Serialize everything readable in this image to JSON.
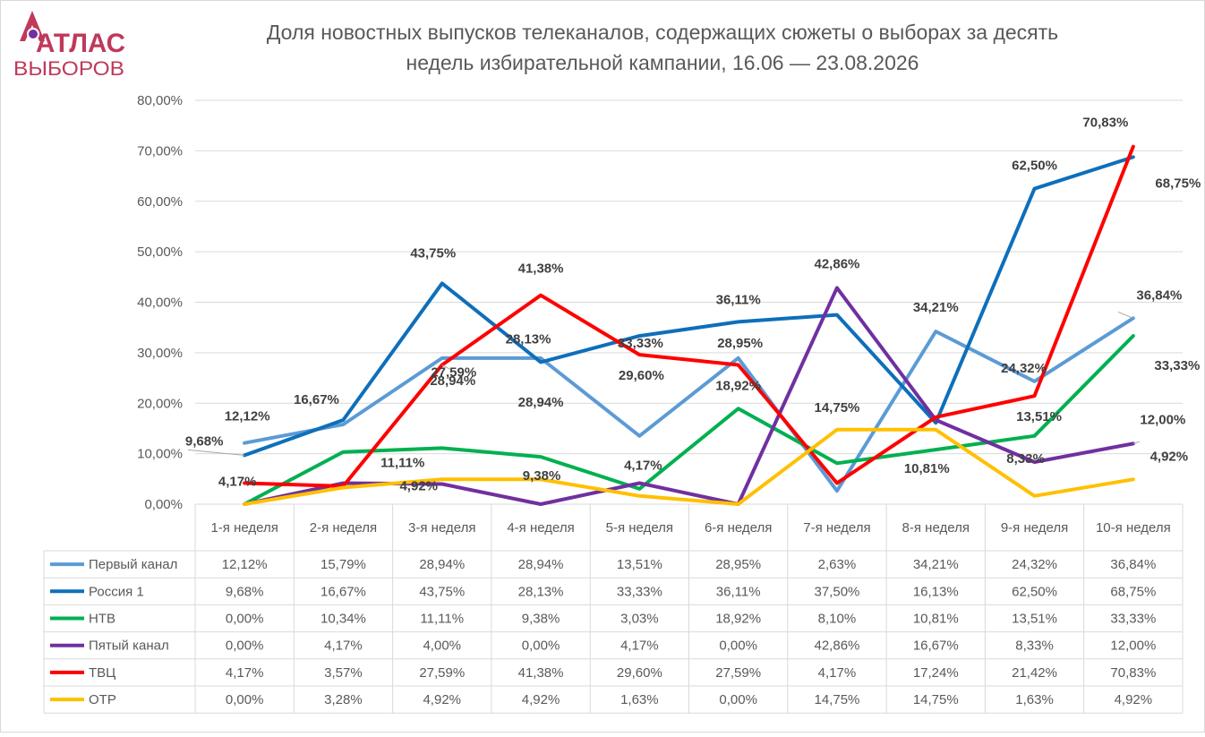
{
  "logo": {
    "line1": "АТЛАС",
    "line2": "ВЫБОРОВ",
    "color": "#c0395a"
  },
  "chart_data": {
    "type": "line",
    "title": "Доля новостных выпусков телеканалов, содержащих сюжеты о выборах за десять недель избирательной кампании, 16.06 — 23.08.2026",
    "title_lines": [
      "Доля новостных выпусков телеканалов, содержащих сюжеты о выборах за десять",
      "недель избирательной кампании, 16.06 — 23.08.2026"
    ],
    "categories": [
      "1-я неделя",
      "2-я неделя",
      "3-я неделя",
      "4-я неделя",
      "5-я неделя",
      "6-я неделя",
      "7-я неделя",
      "8-я неделя",
      "9-я неделя",
      "10-я неделя"
    ],
    "ylim": [
      0,
      80
    ],
    "yticks": [
      "0,00%",
      "10,00%",
      "20,00%",
      "30,00%",
      "40,00%",
      "50,00%",
      "60,00%",
      "70,00%",
      "80,00%"
    ],
    "grid": true,
    "legend": "data-table",
    "series": [
      {
        "name": "Первый канал",
        "color": "#5b9bd5",
        "values": [
          12.12,
          15.79,
          28.94,
          28.94,
          13.51,
          28.95,
          2.63,
          34.21,
          24.32,
          36.84
        ],
        "labels": [
          "12,12%",
          "15,79%",
          "28,94%",
          "28,94%",
          "13,51%",
          "28,95%",
          "2,63%",
          "34,21%",
          "24,32%",
          "36,84%"
        ]
      },
      {
        "name": "Россия 1",
        "color": "#0e6fba",
        "values": [
          9.68,
          16.67,
          43.75,
          28.13,
          33.33,
          36.11,
          37.5,
          16.13,
          62.5,
          68.75
        ],
        "labels": [
          "9,68%",
          "16,67%",
          "43,75%",
          "28,13%",
          "33,33%",
          "36,11%",
          "37,50%",
          "16,13%",
          "62,50%",
          "68,75%"
        ]
      },
      {
        "name": "НТВ",
        "color": "#00b050",
        "values": [
          0.0,
          10.34,
          11.11,
          9.38,
          3.03,
          18.92,
          8.1,
          10.81,
          13.51,
          33.33
        ],
        "labels": [
          "0,00%",
          "10,34%",
          "11,11%",
          "9,38%",
          "3,03%",
          "18,92%",
          "8,10%",
          "10,81%",
          "13,51%",
          "33,33%"
        ]
      },
      {
        "name": "Пятый канал",
        "color": "#7030a0",
        "values": [
          0.0,
          4.17,
          4.0,
          0.0,
          4.17,
          0.0,
          42.86,
          16.67,
          8.33,
          12.0
        ],
        "labels": [
          "0,00%",
          "4,17%",
          "4,00%",
          "0,00%",
          "4,17%",
          "0,00%",
          "42,86%",
          "16,67%",
          "8,33%",
          "12,00%"
        ]
      },
      {
        "name": "ТВЦ",
        "color": "#ff0000",
        "values": [
          4.17,
          3.57,
          27.59,
          41.38,
          29.6,
          27.59,
          4.17,
          17.24,
          21.42,
          70.83
        ],
        "labels": [
          "4,17%",
          "3,57%",
          "27,59%",
          "41,38%",
          "29,60%",
          "27,59%",
          "4,17%",
          "17,24%",
          "21,42%",
          "70,83%"
        ]
      },
      {
        "name": "ОТР",
        "color": "#ffc000",
        "values": [
          0.0,
          3.28,
          4.92,
          4.92,
          1.63,
          0.0,
          14.75,
          14.75,
          1.63,
          4.92
        ],
        "labels": [
          "0,00%",
          "3,28%",
          "4,92%",
          "4,92%",
          "1,63%",
          "0,00%",
          "14,75%",
          "14,75%",
          "1,63%",
          "4,92%"
        ]
      }
    ],
    "annotations": [
      {
        "text": "12,12%",
        "series": 0,
        "point": 0
      },
      {
        "text": "9,68%",
        "series": 1,
        "point": 0
      },
      {
        "text": "4,17%",
        "series": 4,
        "point": 0
      },
      {
        "text": "16,67%",
        "series": 1,
        "point": 1
      },
      {
        "text": "43,75%",
        "series": 1,
        "point": 2
      },
      {
        "text": "28,94%",
        "series": 0,
        "point": 2
      },
      {
        "text": "27,59%",
        "series": 4,
        "point": 2
      },
      {
        "text": "11,11%",
        "series": 2,
        "point": 2
      },
      {
        "text": "4,92%",
        "series": 5,
        "point": 2
      },
      {
        "text": "41,38%",
        "series": 4,
        "point": 3
      },
      {
        "text": "28,94%",
        "series": 0,
        "point": 3
      },
      {
        "text": "28,13%",
        "series": 1,
        "point": 3
      },
      {
        "text": "9,38%",
        "series": 2,
        "point": 3
      },
      {
        "text": "33,33%",
        "series": 1,
        "point": 4
      },
      {
        "text": "29,60%",
        "series": 4,
        "point": 4
      },
      {
        "text": "4,17%",
        "series": 3,
        "point": 4
      },
      {
        "text": "36,11%",
        "series": 1,
        "point": 5
      },
      {
        "text": "28,95%",
        "series": 0,
        "point": 5
      },
      {
        "text": "18,92%",
        "series": 2,
        "point": 5
      },
      {
        "text": "42,86%",
        "series": 3,
        "point": 6
      },
      {
        "text": "14,75%",
        "series": 5,
        "point": 6
      },
      {
        "text": "34,21%",
        "series": 0,
        "point": 7
      },
      {
        "text": "10,81%",
        "series": 2,
        "point": 7
      },
      {
        "text": "62,50%",
        "series": 1,
        "point": 8
      },
      {
        "text": "24,32%",
        "series": 0,
        "point": 8
      },
      {
        "text": "13,51%",
        "series": 2,
        "point": 8
      },
      {
        "text": "8,33%",
        "series": 3,
        "point": 8
      },
      {
        "text": "70,83%",
        "series": 4,
        "point": 9
      },
      {
        "text": "68,75%",
        "series": 1,
        "point": 9
      },
      {
        "text": "36,84%",
        "series": 0,
        "point": 9
      },
      {
        "text": "33,33%",
        "series": 2,
        "point": 9
      },
      {
        "text": "12,00%",
        "series": 3,
        "point": 9
      },
      {
        "text": "4,92%",
        "series": 5,
        "point": 9
      }
    ]
  }
}
